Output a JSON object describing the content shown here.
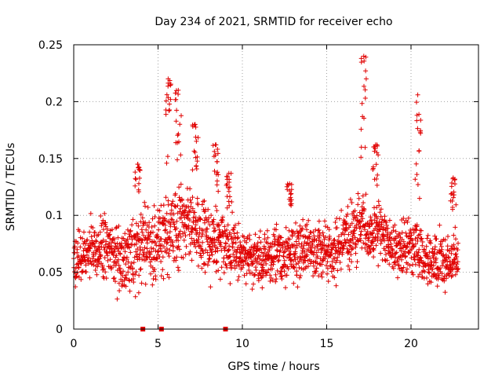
{
  "chart_data": {
    "type": "scatter",
    "title": "Day 234 of 2021, SRMTID for receiver echo",
    "xlabel": "GPS time / hours",
    "ylabel": "SRMTID / TECUs",
    "xlim": [
      0,
      24
    ],
    "ylim": [
      0,
      0.25
    ],
    "xticks": [
      0,
      5,
      10,
      15,
      20
    ],
    "xtick_labels": [
      "0",
      "5",
      "10",
      "15",
      "20"
    ],
    "yticks": [
      0,
      0.05,
      0.1,
      0.15,
      0.2,
      0.25
    ],
    "ytick_labels": [
      "0",
      "0.05",
      "0.1",
      "0.15",
      "0.2",
      "0.25"
    ],
    "grid": true,
    "marker": "plus",
    "color": "#e00000",
    "zero_points_x": [
      4.1,
      5.2,
      9.0
    ],
    "series": [
      {
        "name": "SRMTID",
        "description": "dense scatter of roughly 2000 points, approximated from the band envelope",
        "x_start": 0.0,
        "x_end": 22.8,
        "approx_points": 2000,
        "band": {
          "x": [
            0,
            1,
            2,
            3,
            4,
            5,
            6,
            7,
            8,
            9,
            10,
            11,
            12,
            13,
            14,
            15,
            16,
            17,
            18,
            19,
            20,
            21,
            22,
            22.8
          ],
          "low": [
            0.03,
            0.035,
            0.03,
            0.025,
            0.03,
            0.03,
            0.045,
            0.05,
            0.04,
            0.035,
            0.035,
            0.03,
            0.03,
            0.035,
            0.04,
            0.035,
            0.04,
            0.05,
            0.05,
            0.04,
            0.04,
            0.03,
            0.03,
            0.03
          ],
          "high": [
            0.09,
            0.1,
            0.11,
            0.1,
            0.12,
            0.13,
            0.14,
            0.13,
            0.12,
            0.11,
            0.1,
            0.09,
            0.1,
            0.1,
            0.1,
            0.1,
            0.11,
            0.13,
            0.12,
            0.1,
            0.11,
            0.09,
            0.09,
            0.09
          ]
        },
        "spikes": [
          {
            "x": 3.8,
            "peak": 0.145
          },
          {
            "x": 5.6,
            "peak": 0.22
          },
          {
            "x": 6.2,
            "peak": 0.21
          },
          {
            "x": 7.2,
            "peak": 0.18
          },
          {
            "x": 8.4,
            "peak": 0.162
          },
          {
            "x": 9.2,
            "peak": 0.137
          },
          {
            "x": 12.8,
            "peak": 0.128
          },
          {
            "x": 17.2,
            "peak": 0.24
          },
          {
            "x": 17.9,
            "peak": 0.162
          },
          {
            "x": 20.4,
            "peak": 0.206
          },
          {
            "x": 22.5,
            "peak": 0.133
          }
        ]
      }
    ]
  }
}
